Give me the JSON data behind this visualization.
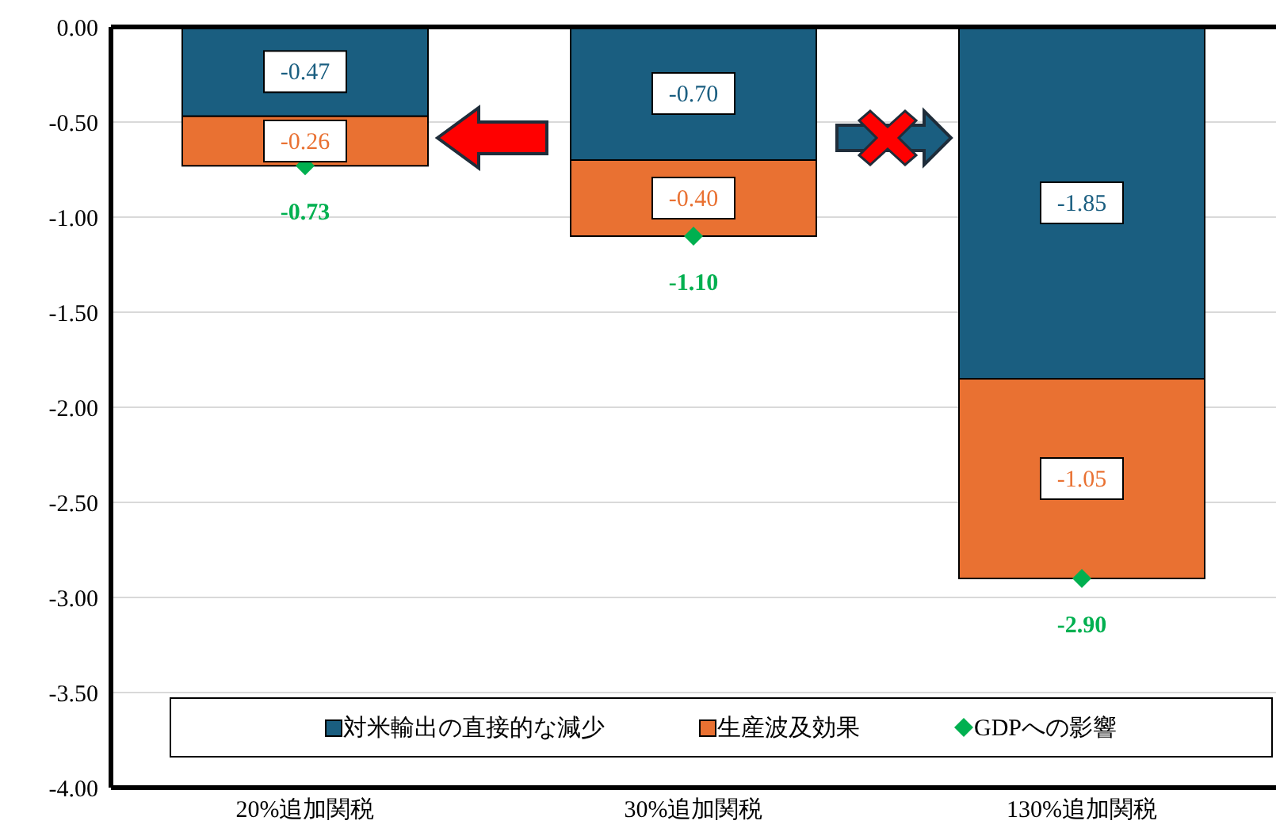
{
  "chart_data": {
    "type": "bar",
    "stacked": true,
    "categories": [
      "20%追加関税",
      "30%追加関税",
      "130%追加関税"
    ],
    "series": [
      {
        "name": "対米輸出の直接的な減少",
        "color": "#1a5e80",
        "values": [
          -0.47,
          -0.7,
          -1.85
        ],
        "value_labels": [
          "-0.47",
          "-0.70",
          "-1.85"
        ]
      },
      {
        "name": "生産波及効果",
        "color": "#e97132",
        "values": [
          -0.26,
          -0.4,
          -1.05
        ],
        "value_labels": [
          "-0.26",
          "-0.40",
          "-1.05"
        ]
      },
      {
        "name": "GDPへの影響",
        "type": "scatter",
        "marker": "diamond",
        "color": "#00b050",
        "values": [
          -0.73,
          -1.1,
          -2.9
        ],
        "value_labels": [
          "-0.73",
          "-1.10",
          "-2.90"
        ]
      }
    ],
    "ylim": [
      -4,
      0
    ],
    "yticks": [
      {
        "value": 0,
        "label": "0.00"
      },
      {
        "value": -0.5,
        "label": "-0.50"
      },
      {
        "value": -1,
        "label": "-1.00"
      },
      {
        "value": -1.5,
        "label": "-1.50"
      },
      {
        "value": -2,
        "label": "-2.00"
      },
      {
        "value": -2.5,
        "label": "-2.50"
      },
      {
        "value": -3,
        "label": "-3.00"
      },
      {
        "value": -3.5,
        "label": "-3.50"
      },
      {
        "value": -4,
        "label": "-4.00"
      }
    ],
    "grid": "y",
    "legend": "bottom"
  }
}
